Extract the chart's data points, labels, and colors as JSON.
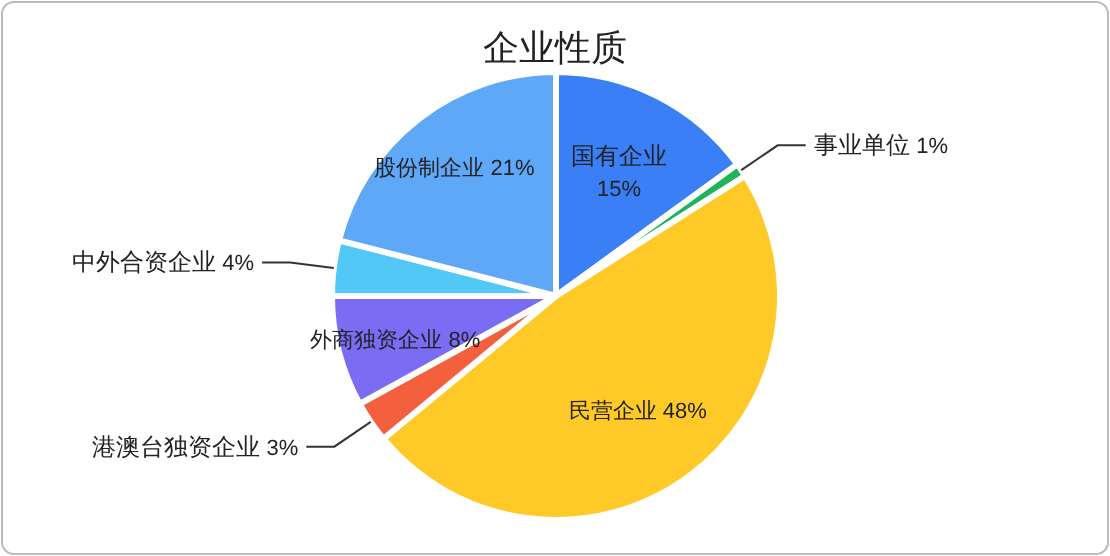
{
  "chart_data": {
    "type": "pie",
    "title": "企业性质",
    "categories": [
      "国有企业",
      "事业单位",
      "民营企业",
      "港澳台独资企业",
      "外商独资企业",
      "中外合资企业",
      "股份制企业"
    ],
    "values": [
      15,
      1,
      48,
      3,
      8,
      4,
      21
    ],
    "colors": [
      "#3a7ff6",
      "#1fb45a",
      "#ffca28",
      "#f4603e",
      "#7b6cf4",
      "#52c8f6",
      "#5fa8f7"
    ],
    "value_labels": [
      "15%",
      "1%",
      "48%",
      "3%",
      "8%",
      "4%",
      "21%"
    ]
  }
}
